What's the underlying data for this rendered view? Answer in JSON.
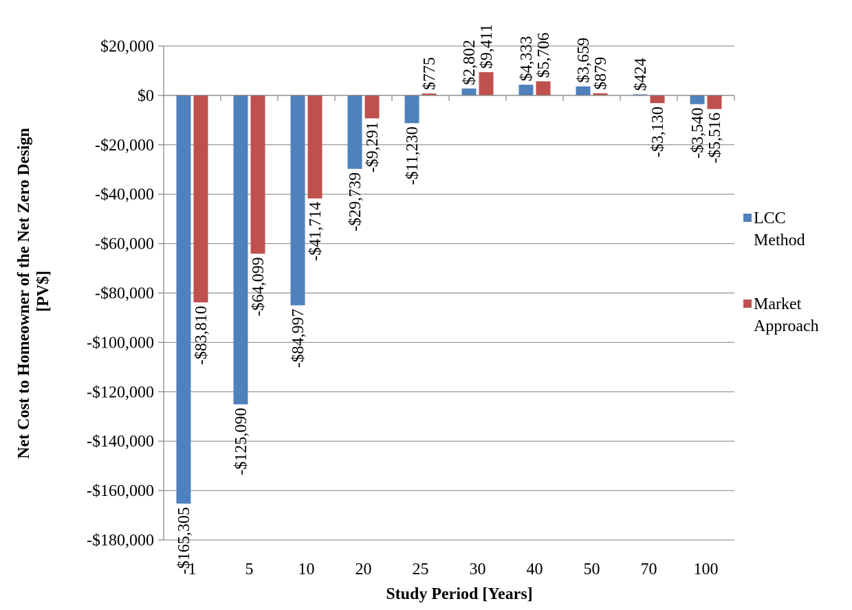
{
  "chart_data": {
    "type": "bar",
    "title": "",
    "xlabel": "Study Period [Years]",
    "ylabel_lines": [
      "Net Cost to Homeowner of the Net Zero Design",
      "[PV$]"
    ],
    "categories": [
      "1",
      "5",
      "10",
      "20",
      "25",
      "30",
      "40",
      "50",
      "70",
      "100"
    ],
    "series": [
      {
        "name": "LCC Method",
        "color": "#4f81bd",
        "values": [
          -165305,
          -125090,
          -84997,
          -29739,
          -11230,
          2802,
          4333,
          3659,
          424,
          -3540
        ],
        "labels": [
          "-$165,305",
          "-$125,090",
          "-$84,997",
          "-$29,739",
          "-$11,230",
          "$2,802",
          "$4,333",
          "$3,659",
          "$424",
          "-$3,540"
        ]
      },
      {
        "name": "Market Approach",
        "color": "#c0504d",
        "values": [
          -83810,
          -64099,
          -41714,
          -9291,
          775,
          9411,
          5706,
          879,
          -3130,
          -5516
        ],
        "labels": [
          "-$83,810",
          "-$64,099",
          "-$41,714",
          "-$9,291",
          "$775",
          "$9,411",
          "$5,706",
          "$879",
          "-$3,130",
          "-$5,516"
        ]
      }
    ],
    "legend_lines": [
      [
        "LCC",
        "Method"
      ],
      [
        "Market",
        "Approach"
      ]
    ],
    "ylim": [
      -180000,
      20000
    ],
    "yticks": [
      20000,
      0,
      -20000,
      -40000,
      -60000,
      -80000,
      -100000,
      -120000,
      -140000,
      -160000,
      -180000
    ],
    "ytick_labels": [
      "$20,000",
      "$0",
      "-$20,000",
      "-$40,000",
      "-$60,000",
      "-$80,000",
      "-$100,000",
      "-$120,000",
      "-$140,000",
      "-$160,000",
      "-$180,000"
    ],
    "grid": true,
    "legend_position": "right"
  }
}
